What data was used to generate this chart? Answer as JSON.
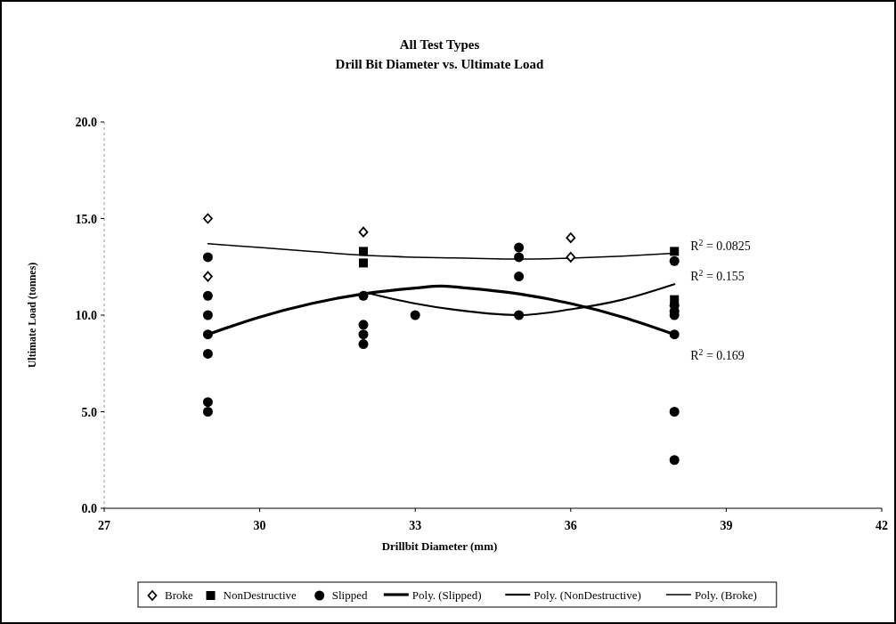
{
  "chart_data": {
    "type": "scatter",
    "title": "All Test Types",
    "subtitle": "Drill Bit Diameter vs. Ultimate Load",
    "xlabel": "Drillbit Diameter (mm)",
    "ylabel": "Ultimate Load (tonnes)",
    "xlim": [
      27,
      42
    ],
    "xticks": [
      27,
      30,
      33,
      36,
      39,
      42
    ],
    "ylim": [
      0,
      20
    ],
    "yticks": [
      {
        "value": 0,
        "label": "0.0"
      },
      {
        "value": 5,
        "label": "5.0"
      },
      {
        "value": 10,
        "label": "10.0"
      },
      {
        "value": 15,
        "label": "15.0"
      },
      {
        "value": 20,
        "label": "20.0"
      }
    ],
    "grid": false,
    "legend": "bottom",
    "series": [
      {
        "name": "Broke",
        "color": "#000000",
        "marker": "diamond",
        "x": [
          29,
          29,
          32,
          36,
          36
        ],
        "values": [
          15.0,
          12.0,
          14.3,
          14.0,
          13.0
        ]
      },
      {
        "name": "NonDestructive",
        "color": "#000000",
        "marker": "square",
        "x": [
          32,
          32,
          38,
          38
        ],
        "values": [
          13.3,
          12.7,
          13.3,
          10.8
        ]
      },
      {
        "name": "Slipped",
        "color": "#000000",
        "marker": "circle",
        "x": [
          29,
          29,
          29,
          29,
          29,
          29,
          29,
          32,
          32,
          32,
          32,
          33,
          35,
          35,
          35,
          35,
          38,
          38,
          38,
          38,
          38,
          38,
          38
        ],
        "values": [
          13.0,
          11.0,
          10.0,
          9.0,
          8.0,
          5.5,
          5.0,
          11.0,
          9.5,
          9.0,
          8.5,
          10.0,
          13.5,
          13.0,
          12.0,
          10.0,
          12.8,
          10.5,
          10.2,
          10.0,
          9.0,
          5.0,
          2.5
        ]
      },
      {
        "name": "Poly. (Slipped)",
        "type": "line",
        "color": "#000000",
        "x": [
          29,
          30,
          31,
          32,
          33,
          33.5,
          34,
          35,
          36,
          37,
          38
        ],
        "values": [
          9.0,
          9.9,
          10.6,
          11.1,
          11.4,
          11.5,
          11.4,
          11.1,
          10.6,
          9.9,
          9.0
        ]
      },
      {
        "name": "Poly. (NonDestructive)",
        "type": "line",
        "color": "#000000",
        "x": [
          32,
          33,
          34,
          35,
          36,
          37,
          38
        ],
        "values": [
          11.2,
          10.6,
          10.2,
          10.0,
          10.3,
          10.8,
          11.6
        ]
      },
      {
        "name": "Poly. (Broke)",
        "type": "line",
        "color": "#000000",
        "x": [
          29,
          30,
          31,
          32,
          33,
          34,
          35,
          36,
          37,
          38
        ],
        "values": [
          13.7,
          13.5,
          13.3,
          13.1,
          13.0,
          12.95,
          12.9,
          12.95,
          13.05,
          13.2
        ]
      }
    ],
    "annotations": [
      "R$^{2}$ = 0.0825",
      "R$^{2}$ = 0.155",
      "R$^{2}$ = 0.169"
    ]
  }
}
